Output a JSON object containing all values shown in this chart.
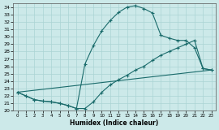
{
  "xlabel": "Humidex (Indice chaleur)",
  "xlim": [
    -0.5,
    23.5
  ],
  "ylim": [
    20,
    34.5
  ],
  "xticks": [
    0,
    1,
    2,
    3,
    4,
    5,
    6,
    7,
    8,
    9,
    10,
    11,
    12,
    13,
    14,
    15,
    16,
    17,
    18,
    19,
    20,
    21,
    22,
    23
  ],
  "yticks": [
    20,
    21,
    22,
    23,
    24,
    25,
    26,
    27,
    28,
    29,
    30,
    31,
    32,
    33,
    34
  ],
  "bg_color": "#cce9e9",
  "line_color": "#1a6b6b",
  "grid_color": "#aad4d4",
  "curve1_x": [
    0,
    1,
    2,
    3,
    4,
    5,
    6,
    7,
    8,
    9,
    10,
    11,
    12,
    13,
    14,
    15,
    16,
    17,
    18,
    19,
    20,
    21,
    22,
    23
  ],
  "curve1_y": [
    22.5,
    22.0,
    21.5,
    21.3,
    21.2,
    21.0,
    20.7,
    20.3,
    26.3,
    28.8,
    30.8,
    32.2,
    33.3,
    34.0,
    34.2,
    33.8,
    33.2,
    30.2,
    29.8,
    29.5,
    29.5,
    28.5,
    25.7,
    25.5
  ],
  "curve2_x": [
    0,
    1,
    2,
    3,
    4,
    5,
    6,
    7,
    8,
    9,
    10,
    11,
    12,
    13,
    14,
    15,
    16,
    17,
    18,
    19,
    20,
    21,
    22,
    23
  ],
  "curve2_y": [
    22.5,
    22.0,
    21.5,
    21.3,
    21.2,
    21.0,
    20.7,
    20.3,
    20.3,
    21.2,
    22.5,
    23.5,
    24.2,
    24.8,
    25.5,
    26.0,
    26.8,
    27.5,
    28.0,
    28.5,
    29.0,
    29.5,
    25.7,
    25.5
  ],
  "curve3_x": [
    0,
    23
  ],
  "curve3_y": [
    22.5,
    25.5
  ]
}
